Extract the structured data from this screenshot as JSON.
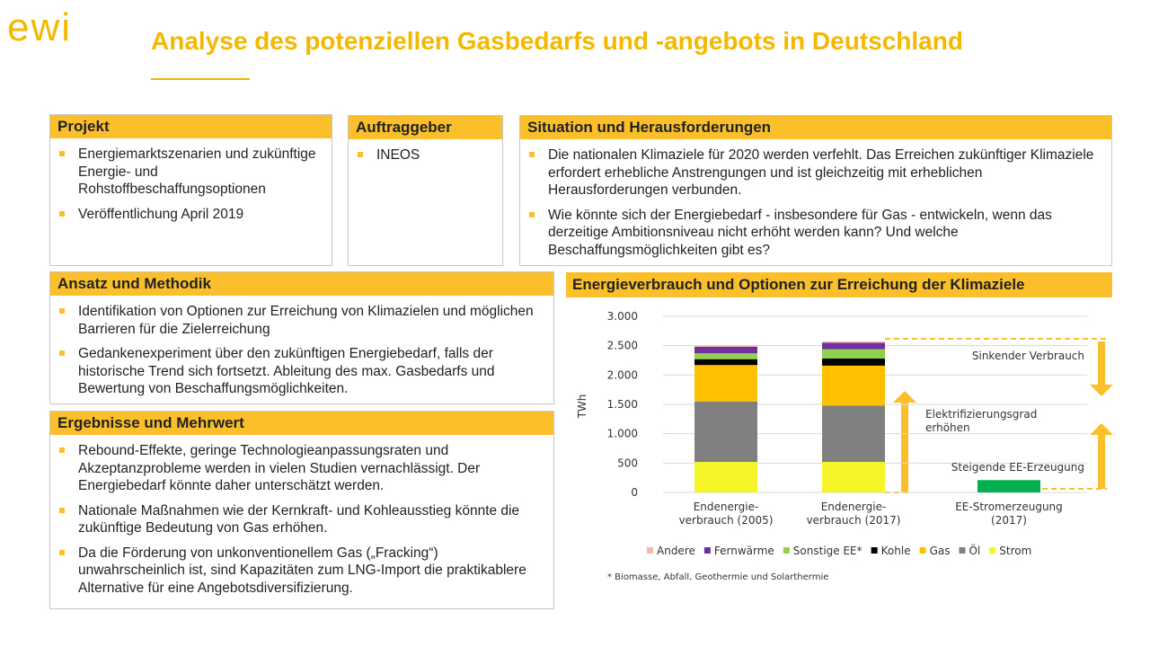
{
  "logo": "ewi",
  "title": "Analyse des potenziellen Gasbedarfs und -angebots in Deutschland",
  "panels": [
    {
      "heading": "Projekt",
      "bullets": [
        "Energiemarktszenarien und zukünftige Energie- und Rohstoffbeschaffungsoptionen",
        "Veröffentlichung April 2019"
      ]
    },
    {
      "heading": "Auftraggeber",
      "bullets": [
        "INEOS"
      ]
    },
    {
      "heading": "Situation und Herausforderungen",
      "bullets": [
        "Die nationalen Klimaziele für 2020 werden verfehlt. Das Erreichen zukünftiger Klimaziele erfordert erhebliche Anstrengungen und ist gleichzeitig mit erheblichen Herausforderungen verbunden.",
        "Wie könnte sich der Energiebedarf - insbesondere für Gas - entwickeln, wenn das derzeitige Ambitionsniveau nicht erhöht werden kann? Und welche Beschaffungsmöglichkeiten gibt es?"
      ]
    },
    {
      "heading": "Ansatz und Methodik",
      "bullets": [
        "Identifikation von Optionen zur Erreichung von Klimazielen und möglichen Barrieren für die Zielerreichung",
        "Gedankenexperiment über den zukünftigen Energiebedarf, falls der historische Trend sich fortsetzt. Ableitung des max. Gasbedarfs und Bewertung von Beschaffungsmöglichkeiten."
      ]
    },
    {
      "heading": "Ergebnisse und Mehrwert",
      "bullets": [
        "Rebound-Effekte, geringe Technologieanpassungsraten und Akzeptanzprobleme werden in vielen Studien vernachlässigt. Der Energiebedarf könnte daher unterschätzt werden.",
        "Nationale Maßnahmen wie der Kernkraft- und Kohleausstieg könnte die zukünftige Bedeutung von Gas erhöhen.",
        "Da die Förderung von unkonventionellem Gas („Fracking“) unwahrscheinlich ist, sind Kapazitäten zum LNG-Import die praktikablere Alternative für eine Angebotsdiversifizierung."
      ]
    }
  ],
  "chart_data": {
    "type": "stacked-bar",
    "title": "Energieverbrauch und Optionen zur Erreichung der Klimaziele",
    "y_label": "TWh",
    "categories": [
      "Endenergie-\nverbrauch (2005)",
      "Endenergie-\nverbrauch (2017)",
      "EE-Stromerzeugung\n(2017)"
    ],
    "series": [
      {
        "name": "Andere",
        "color": "#f4b8a8",
        "values": [
          20,
          20,
          null
        ]
      },
      {
        "name": "Fernwärme",
        "color": "#7030a0",
        "values": [
          110,
          110,
          null
        ]
      },
      {
        "name": "Sonstige EE*",
        "color": "#92d050",
        "values": [
          100,
          160,
          null
        ]
      },
      {
        "name": "Kohle",
        "color": "#000000",
        "values": [
          100,
          120,
          null
        ]
      },
      {
        "name": "Gas",
        "color": "#ffc000",
        "values": [
          620,
          680,
          null
        ]
      },
      {
        "name": "Öl",
        "color": "#808080",
        "values": [
          1030,
          960,
          null
        ]
      },
      {
        "name": "Strom",
        "color": "#f5f52a",
        "values": [
          520,
          520,
          null
        ]
      },
      {
        "color": "#00b050",
        "values": [
          null,
          null,
          210
        ]
      }
    ],
    "ylim": [
      0,
      3000
    ],
    "yticks": [
      0,
      500,
      {
        "value": 1000,
        "label": "1.000"
      },
      {
        "value": 1500,
        "label": "1.500"
      },
      {
        "value": 2000,
        "label": "2.000"
      },
      {
        "value": 2500,
        "label": "2.500"
      },
      {
        "value": 3000,
        "label": "3.000"
      }
    ],
    "grid": true,
    "annotations": [
      "Sinkender Verbrauch",
      "Elektrifizierungsgrad\nerhöhen",
      "Steigende EE-Erzeugung"
    ],
    "footnote": "* Biomasse, Abfall, Geothermie und Solarthermie"
  }
}
